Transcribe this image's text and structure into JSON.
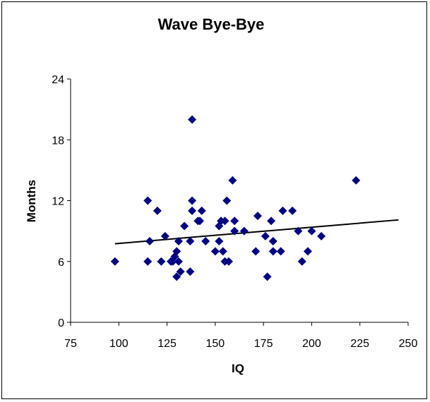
{
  "chart_data": {
    "type": "scatter",
    "title": "Wave Bye-Bye",
    "xlabel": "IQ",
    "ylabel": "Months",
    "xlim": [
      75,
      250
    ],
    "ylim": [
      0,
      24
    ],
    "xticks": [
      "75",
      "100",
      "125",
      "150",
      "175",
      "200",
      "225",
      "250"
    ],
    "yticks": [
      "0",
      "6",
      "12",
      "18",
      "24"
    ],
    "grid": false,
    "legend": "none",
    "marker_color": "#000080",
    "trendline_color": "#000000",
    "series": [
      {
        "marker": "diamond",
        "points": [
          [
            98,
            6
          ],
          [
            115,
            6
          ],
          [
            115,
            12
          ],
          [
            116,
            8
          ],
          [
            120,
            11
          ],
          [
            122,
            6
          ],
          [
            124,
            8.5
          ],
          [
            127,
            6
          ],
          [
            128,
            6
          ],
          [
            129,
            6.5
          ],
          [
            130,
            4.5
          ],
          [
            130,
            7
          ],
          [
            131,
            8
          ],
          [
            131,
            6
          ],
          [
            132,
            5
          ],
          [
            134,
            9.5
          ],
          [
            137,
            5
          ],
          [
            137,
            8
          ],
          [
            138,
            11
          ],
          [
            138,
            12
          ],
          [
            138,
            20
          ],
          [
            141,
            10
          ],
          [
            142,
            10
          ],
          [
            143,
            11
          ],
          [
            145,
            8
          ],
          [
            150,
            7
          ],
          [
            152,
            8
          ],
          [
            152,
            9.5
          ],
          [
            153,
            10
          ],
          [
            154,
            7
          ],
          [
            155,
            6
          ],
          [
            155,
            10
          ],
          [
            156,
            12
          ],
          [
            157,
            6
          ],
          [
            159,
            14
          ],
          [
            160,
            9
          ],
          [
            160,
            10
          ],
          [
            165,
            9
          ],
          [
            171,
            7
          ],
          [
            172,
            10.5
          ],
          [
            176,
            8.5
          ],
          [
            177,
            4.5
          ],
          [
            179,
            10
          ],
          [
            180,
            7
          ],
          [
            180,
            8
          ],
          [
            184,
            7
          ],
          [
            185,
            11
          ],
          [
            190,
            11
          ],
          [
            193,
            9
          ],
          [
            195,
            6
          ],
          [
            198,
            7
          ],
          [
            200,
            9
          ],
          [
            205,
            8.5
          ],
          [
            223,
            14
          ]
        ]
      }
    ],
    "trendline": {
      "x": [
        98,
        245
      ],
      "y": [
        7.75,
        10.1
      ]
    }
  }
}
